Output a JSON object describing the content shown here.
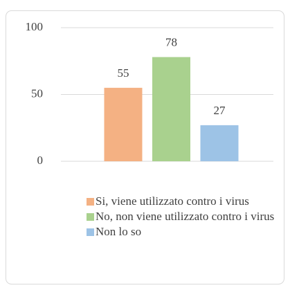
{
  "chart_data": {
    "type": "bar",
    "categories": [
      null
    ],
    "series": [
      {
        "name": "Si, viene utilizzato contro i virus",
        "color": "#f4b183",
        "values": [
          55
        ]
      },
      {
        "name": "No, non viene utilizzato contro i virus",
        "color": "#a9d18e",
        "values": [
          78
        ]
      },
      {
        "name": "Non lo so",
        "color": "#9dc3e6",
        "values": [
          27
        ]
      }
    ],
    "ylim": [
      0,
      100
    ],
    "yticks": [
      0,
      50,
      100
    ],
    "grid": true,
    "legend": "bottom"
  }
}
